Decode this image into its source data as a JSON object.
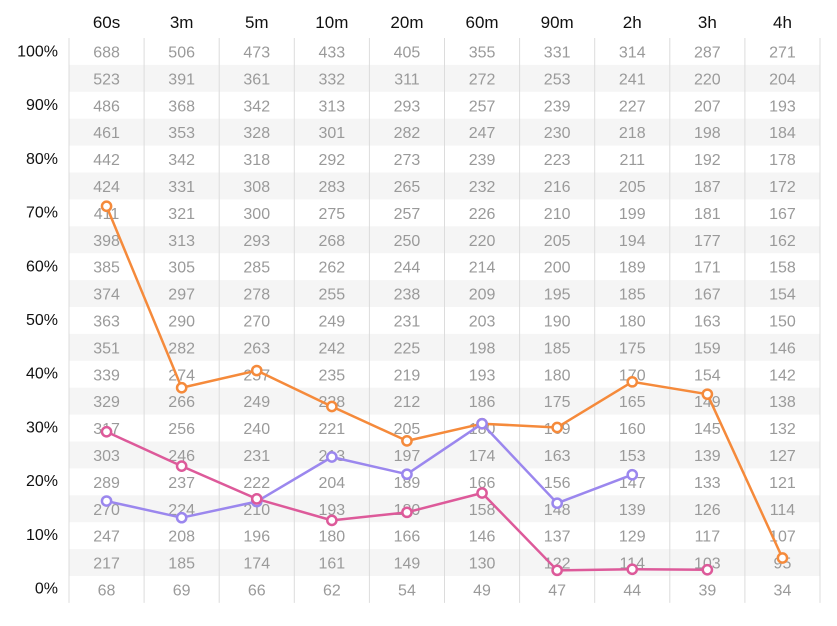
{
  "chart_data": {
    "type": "line",
    "columns": [
      "60s",
      "3m",
      "5m",
      "10m",
      "20m",
      "60m",
      "90m",
      "2h",
      "3h",
      "4h"
    ],
    "y_ticks": [
      "100%",
      "90%",
      "80%",
      "70%",
      "60%",
      "50%",
      "40%",
      "30%",
      "20%",
      "10%",
      "0%"
    ],
    "ylim": [
      0,
      100
    ],
    "grid": true,
    "table_rows": [
      [
        "688",
        "506",
        "473",
        "433",
        "405",
        "355",
        "331",
        "314",
        "287",
        "271"
      ],
      [
        "523",
        "391",
        "361",
        "332",
        "311",
        "272",
        "253",
        "241",
        "220",
        "204"
      ],
      [
        "486",
        "368",
        "342",
        "313",
        "293",
        "257",
        "239",
        "227",
        "207",
        "193"
      ],
      [
        "461",
        "353",
        "328",
        "301",
        "282",
        "247",
        "230",
        "218",
        "198",
        "184"
      ],
      [
        "442",
        "342",
        "318",
        "292",
        "273",
        "239",
        "223",
        "211",
        "192",
        "178"
      ],
      [
        "424",
        "331",
        "308",
        "283",
        "265",
        "232",
        "216",
        "205",
        "187",
        "172"
      ],
      [
        "411",
        "321",
        "300",
        "275",
        "257",
        "226",
        "210",
        "199",
        "181",
        "167"
      ],
      [
        "398",
        "313",
        "293",
        "268",
        "250",
        "220",
        "205",
        "194",
        "177",
        "162"
      ],
      [
        "385",
        "305",
        "285",
        "262",
        "244",
        "214",
        "200",
        "189",
        "171",
        "158"
      ],
      [
        "374",
        "297",
        "278",
        "255",
        "238",
        "209",
        "195",
        "185",
        "167",
        "154"
      ],
      [
        "363",
        "290",
        "270",
        "249",
        "231",
        "203",
        "190",
        "180",
        "163",
        "150"
      ],
      [
        "351",
        "282",
        "263",
        "242",
        "225",
        "198",
        "185",
        "175",
        "159",
        "146"
      ],
      [
        "339",
        "274",
        "257",
        "235",
        "219",
        "193",
        "180",
        "170",
        "154",
        "142"
      ],
      [
        "329",
        "266",
        "249",
        "228",
        "212",
        "186",
        "175",
        "165",
        "149",
        "138"
      ],
      [
        "317",
        "256",
        "240",
        "221",
        "205",
        "180",
        "169",
        "160",
        "145",
        "132"
      ],
      [
        "303",
        "246",
        "231",
        "213",
        "197",
        "174",
        "163",
        "153",
        "139",
        "127"
      ],
      [
        "289",
        "237",
        "222",
        "204",
        "189",
        "166",
        "156",
        "147",
        "133",
        "121"
      ],
      [
        "270",
        "224",
        "210",
        "193",
        "180",
        "158",
        "148",
        "139",
        "126",
        "114"
      ],
      [
        "247",
        "208",
        "196",
        "180",
        "166",
        "146",
        "137",
        "129",
        "117",
        "107"
      ],
      [
        "217",
        "185",
        "174",
        "161",
        "149",
        "130",
        "122",
        "114",
        "103",
        "95"
      ],
      [
        "68",
        "69",
        "66",
        "62",
        "54",
        "49",
        "47",
        "44",
        "39",
        "34"
      ]
    ],
    "series": [
      {
        "color": "#f58a3b",
        "values": [
          71,
          37.2,
          40.4,
          33.7,
          27.3,
          30.5,
          29.8,
          38.3,
          36,
          5.5
        ]
      },
      {
        "color": "#9b87ee",
        "values": [
          16.1,
          13,
          16,
          24.3,
          21.1,
          30.5,
          15.7,
          21,
          null,
          null
        ]
      },
      {
        "color": "#dd5a9a",
        "values": [
          29,
          22.6,
          16.5,
          12.5,
          14,
          17.6,
          3.2,
          3.4,
          3.3,
          null
        ]
      }
    ]
  }
}
